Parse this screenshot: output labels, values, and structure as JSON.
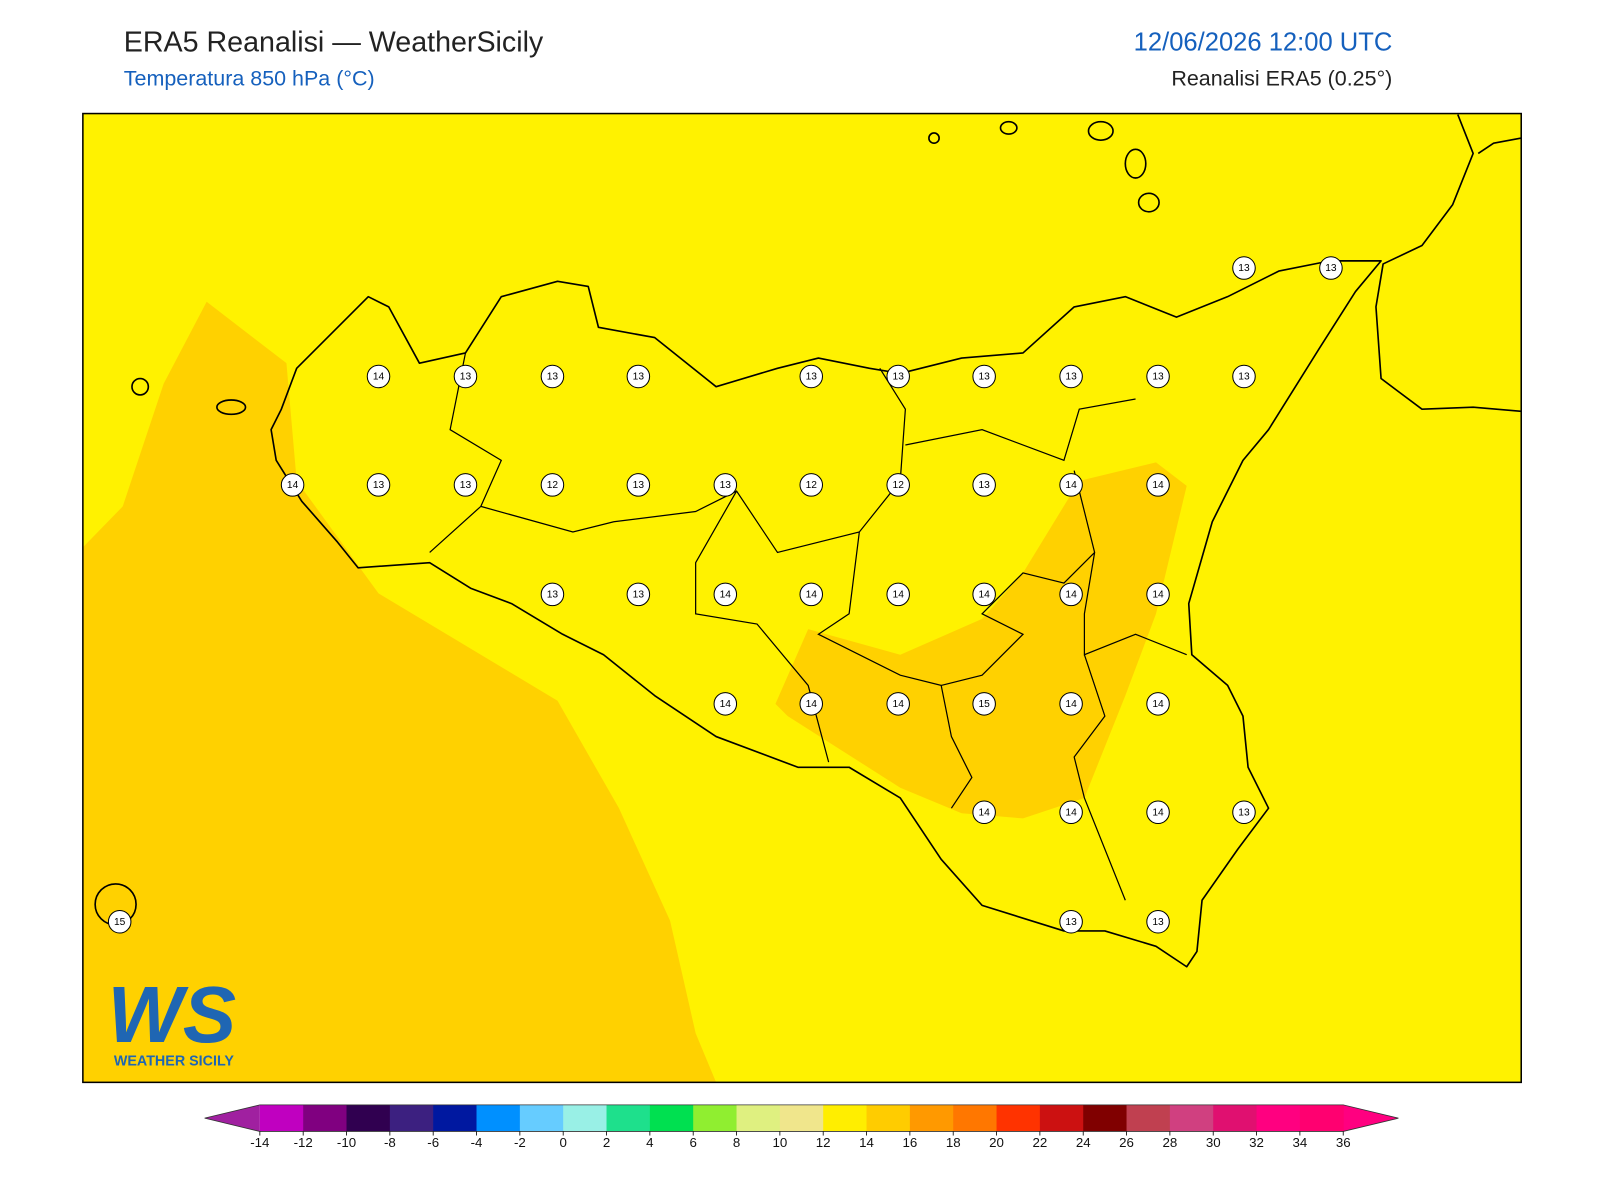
{
  "header": {
    "title": "ERA5 Reanalisi — WeatherSicily",
    "subtitle": "Temperatura 850 hPa (°C)",
    "datetime": "12/06/2026 12:00 UTC",
    "source": "Reanalisi ERA5 (0.25°)"
  },
  "map": {
    "labels": [
      13,
      13,
      14,
      13,
      13,
      13,
      13,
      13,
      13,
      13,
      13,
      13,
      14,
      13,
      13,
      12,
      13,
      13,
      12,
      12,
      13,
      14,
      14,
      13,
      13,
      14,
      14,
      14,
      14,
      14,
      14,
      14,
      14,
      14,
      15,
      14,
      14,
      14,
      14,
      14,
      13,
      15,
      13,
      13
    ]
  },
  "colorbar": {
    "ticks": [
      -14,
      -12,
      -10,
      -8,
      -6,
      -4,
      -2,
      0,
      2,
      4,
      6,
      8,
      10,
      12,
      14,
      16,
      18,
      20,
      22,
      24,
      26,
      28,
      30,
      32,
      34,
      36
    ],
    "colors": [
      "#c000c0",
      "#800080",
      "#300050",
      "#3c2080",
      "#0018a0",
      "#0090ff",
      "#66ccff",
      "#99f0e6",
      "#1ee08c",
      "#00e050",
      "#90ee30",
      "#dff080",
      "#f0e68c",
      "#ffee00",
      "#ffcc00",
      "#ff9900",
      "#ff7700",
      "#ff3300",
      "#cc1111",
      "#800000",
      "#c04050",
      "#d04080",
      "#e01070",
      "#ff0080",
      "#ff0070"
    ],
    "extend_colors": [
      "#a020a0",
      "#ff0080"
    ]
  },
  "logo": {
    "title": "WS",
    "subtitle": "WEATHER SICILY"
  }
}
